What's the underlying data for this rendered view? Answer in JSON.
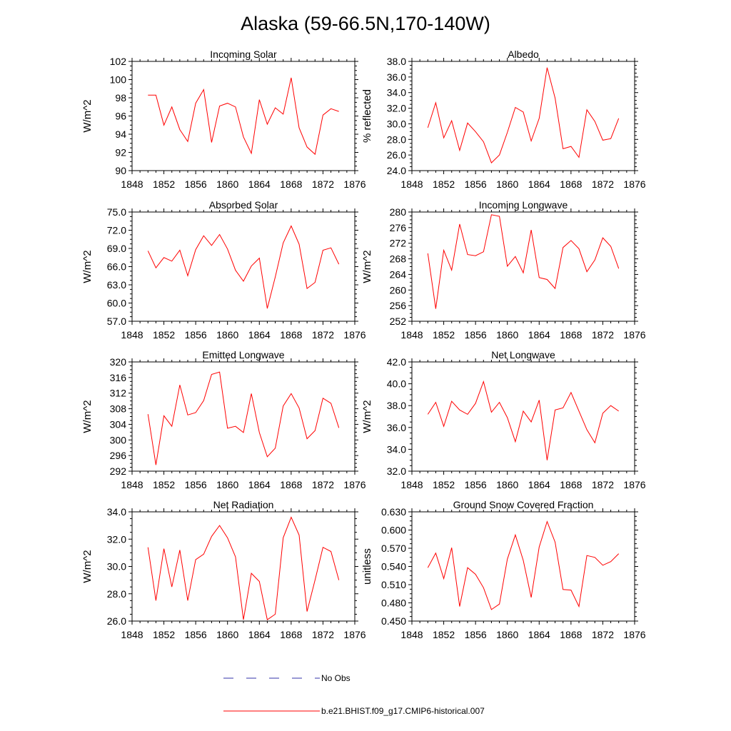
{
  "figure": {
    "title": "Alaska (59-66.5N,170-140W)"
  },
  "legend": {
    "items": [
      {
        "label": "No Obs",
        "color": "#3333aa",
        "dash": "dashed"
      },
      {
        "label": "b.e21.BHIST.f09_g17.CMIP6-historical.007",
        "color": "#ff0000",
        "dash": "solid"
      }
    ]
  },
  "series_color": "#ff0000",
  "chart_data": [
    {
      "type": "line",
      "title": "Incoming Solar",
      "xlabel": "",
      "ylabel": "W/m^2",
      "xlim": [
        1848,
        1876
      ],
      "ylim": [
        90,
        102
      ],
      "xticks": [
        1848,
        1852,
        1856,
        1860,
        1864,
        1868,
        1872,
        1876
      ],
      "yticks": [
        90,
        92,
        94,
        96,
        98,
        100,
        102
      ],
      "ytick_decimals": 0,
      "x": [
        1850,
        1851,
        1852,
        1853,
        1854,
        1855,
        1856,
        1857,
        1858,
        1859,
        1860,
        1861,
        1862,
        1863,
        1864,
        1865,
        1866,
        1867,
        1868,
        1869,
        1870,
        1871,
        1872,
        1873,
        1874
      ],
      "series": [
        {
          "values": [
            98.3,
            98.3,
            95.0,
            97.0,
            94.5,
            93.2,
            97.4,
            98.9,
            93.1,
            97.1,
            97.4,
            97.0,
            93.7,
            91.9,
            97.8,
            95.1,
            96.9,
            96.2,
            100.2,
            94.7,
            92.6,
            91.8,
            96.1,
            96.8,
            96.5
          ]
        }
      ]
    },
    {
      "type": "line",
      "title": "Albedo",
      "xlabel": "",
      "ylabel": "% reflected",
      "xlim": [
        1848,
        1876
      ],
      "ylim": [
        24,
        38
      ],
      "xticks": [
        1848,
        1852,
        1856,
        1860,
        1864,
        1868,
        1872,
        1876
      ],
      "yticks": [
        24,
        26,
        28,
        30,
        32,
        34,
        36,
        38
      ],
      "ytick_decimals": 1,
      "x": [
        1850,
        1851,
        1852,
        1853,
        1854,
        1855,
        1856,
        1857,
        1858,
        1859,
        1860,
        1861,
        1862,
        1863,
        1864,
        1865,
        1866,
        1867,
        1868,
        1869,
        1870,
        1871,
        1872,
        1873,
        1874
      ],
      "series": [
        {
          "values": [
            29.5,
            32.7,
            28.2,
            30.4,
            26.6,
            30.1,
            29.0,
            27.7,
            25.0,
            26.0,
            28.9,
            32.1,
            31.5,
            27.8,
            30.7,
            37.2,
            33.3,
            26.8,
            27.1,
            25.7,
            31.8,
            30.3,
            27.9,
            28.1,
            30.7
          ]
        }
      ]
    },
    {
      "type": "line",
      "title": "Absorbed Solar",
      "xlabel": "",
      "ylabel": "W/m^2",
      "xlim": [
        1848,
        1876
      ],
      "ylim": [
        57,
        75
      ],
      "xticks": [
        1848,
        1852,
        1856,
        1860,
        1864,
        1868,
        1872,
        1876
      ],
      "yticks": [
        57,
        60,
        63,
        66,
        69,
        72,
        75
      ],
      "ytick_decimals": 1,
      "x": [
        1850,
        1851,
        1852,
        1853,
        1854,
        1855,
        1856,
        1857,
        1858,
        1859,
        1860,
        1861,
        1862,
        1863,
        1864,
        1865,
        1866,
        1867,
        1868,
        1869,
        1870,
        1871,
        1872,
        1873,
        1874
      ],
      "series": [
        {
          "values": [
            68.6,
            65.8,
            67.5,
            66.9,
            68.7,
            64.5,
            68.8,
            71.1,
            69.5,
            71.3,
            68.9,
            65.4,
            63.6,
            66.1,
            67.4,
            59.1,
            64.3,
            69.9,
            72.7,
            69.7,
            62.4,
            63.4,
            68.7,
            69.1,
            66.4
          ]
        }
      ]
    },
    {
      "type": "line",
      "title": "Incoming Longwave",
      "xlabel": "",
      "ylabel": "W/m^2",
      "xlim": [
        1848,
        1876
      ],
      "ylim": [
        252,
        280
      ],
      "xticks": [
        1848,
        1852,
        1856,
        1860,
        1864,
        1868,
        1872,
        1876
      ],
      "yticks": [
        252,
        256,
        260,
        264,
        268,
        272,
        276,
        280
      ],
      "ytick_decimals": 0,
      "x": [
        1850,
        1851,
        1852,
        1853,
        1854,
        1855,
        1856,
        1857,
        1858,
        1859,
        1860,
        1861,
        1862,
        1863,
        1864,
        1865,
        1866,
        1867,
        1868,
        1869,
        1870,
        1871,
        1872,
        1873,
        1874
      ],
      "series": [
        {
          "values": [
            269.4,
            255.2,
            270.2,
            265.1,
            276.9,
            269.1,
            268.8,
            269.8,
            279.3,
            278.9,
            266.1,
            268.6,
            264.4,
            275.4,
            263.2,
            262.7,
            260.4,
            270.9,
            272.7,
            270.6,
            264.7,
            267.7,
            273.4,
            271.2,
            265.5
          ]
        }
      ]
    },
    {
      "type": "line",
      "title": "Emitted Longwave",
      "xlabel": "",
      "ylabel": "W/m^2",
      "xlim": [
        1848,
        1876
      ],
      "ylim": [
        292,
        320
      ],
      "xticks": [
        1848,
        1852,
        1856,
        1860,
        1864,
        1868,
        1872,
        1876
      ],
      "yticks": [
        292,
        296,
        300,
        304,
        308,
        312,
        316,
        320
      ],
      "ytick_decimals": 0,
      "x": [
        1850,
        1851,
        1852,
        1853,
        1854,
        1855,
        1856,
        1857,
        1858,
        1859,
        1860,
        1861,
        1862,
        1863,
        1864,
        1865,
        1866,
        1867,
        1868,
        1869,
        1870,
        1871,
        1872,
        1873,
        1874
      ],
      "series": [
        {
          "values": [
            306.6,
            293.6,
            306.2,
            303.5,
            314.1,
            306.4,
            307.0,
            310.1,
            316.8,
            317.4,
            303.0,
            303.5,
            301.9,
            311.9,
            301.9,
            295.7,
            297.9,
            308.7,
            311.9,
            308.2,
            300.3,
            302.4,
            310.7,
            309.4,
            303.1
          ]
        }
      ]
    },
    {
      "type": "line",
      "title": "Net Longwave",
      "xlabel": "",
      "ylabel": "W/m^2",
      "xlim": [
        1848,
        1876
      ],
      "ylim": [
        32,
        42
      ],
      "xticks": [
        1848,
        1852,
        1856,
        1860,
        1864,
        1868,
        1872,
        1876
      ],
      "yticks": [
        32,
        34,
        36,
        38,
        40,
        42
      ],
      "ytick_decimals": 1,
      "x": [
        1850,
        1851,
        1852,
        1853,
        1854,
        1855,
        1856,
        1857,
        1858,
        1859,
        1860,
        1861,
        1862,
        1863,
        1864,
        1865,
        1866,
        1867,
        1868,
        1869,
        1870,
        1871,
        1872,
        1873,
        1874
      ],
      "series": [
        {
          "values": [
            37.2,
            38.3,
            36.1,
            38.4,
            37.6,
            37.2,
            38.2,
            40.2,
            37.4,
            38.3,
            36.9,
            34.7,
            37.5,
            36.5,
            38.5,
            33.0,
            37.6,
            37.8,
            39.2,
            37.5,
            35.8,
            34.6,
            37.3,
            38.0,
            37.5
          ]
        }
      ]
    },
    {
      "type": "line",
      "title": "Net Radiation",
      "xlabel": "",
      "ylabel": "W/m^2",
      "xlim": [
        1848,
        1876
      ],
      "ylim": [
        26,
        34
      ],
      "xticks": [
        1848,
        1852,
        1856,
        1860,
        1864,
        1868,
        1872,
        1876
      ],
      "yticks": [
        26,
        28,
        30,
        32,
        34
      ],
      "ytick_decimals": 1,
      "x": [
        1850,
        1851,
        1852,
        1853,
        1854,
        1855,
        1856,
        1857,
        1858,
        1859,
        1860,
        1861,
        1862,
        1863,
        1864,
        1865,
        1866,
        1867,
        1868,
        1869,
        1870,
        1871,
        1872,
        1873,
        1874
      ],
      "series": [
        {
          "values": [
            31.4,
            27.5,
            31.3,
            28.5,
            31.2,
            27.5,
            30.5,
            30.9,
            32.2,
            33.0,
            32.1,
            30.7,
            26.1,
            29.5,
            28.9,
            26.1,
            26.5,
            32.1,
            33.6,
            32.3,
            26.7,
            29.0,
            31.4,
            31.1,
            29.0
          ]
        }
      ]
    },
    {
      "type": "line",
      "title": "Ground Snow Covered Fraction",
      "xlabel": "",
      "ylabel": "unitless",
      "xlim": [
        1848,
        1876
      ],
      "ylim": [
        0.45,
        0.63
      ],
      "xticks": [
        1848,
        1852,
        1856,
        1860,
        1864,
        1868,
        1872,
        1876
      ],
      "yticks": [
        0.45,
        0.48,
        0.51,
        0.54,
        0.57,
        0.6,
        0.63
      ],
      "ytick_decimals": 3,
      "x": [
        1850,
        1851,
        1852,
        1853,
        1854,
        1855,
        1856,
        1857,
        1858,
        1859,
        1860,
        1861,
        1862,
        1863,
        1864,
        1865,
        1866,
        1867,
        1868,
        1869,
        1870,
        1871,
        1872,
        1873,
        1874
      ],
      "series": [
        {
          "values": [
            0.538,
            0.562,
            0.52,
            0.571,
            0.474,
            0.538,
            0.527,
            0.505,
            0.469,
            0.478,
            0.552,
            0.592,
            0.55,
            0.489,
            0.572,
            0.614,
            0.58,
            0.502,
            0.501,
            0.474,
            0.558,
            0.555,
            0.542,
            0.548,
            0.561
          ]
        }
      ]
    }
  ]
}
